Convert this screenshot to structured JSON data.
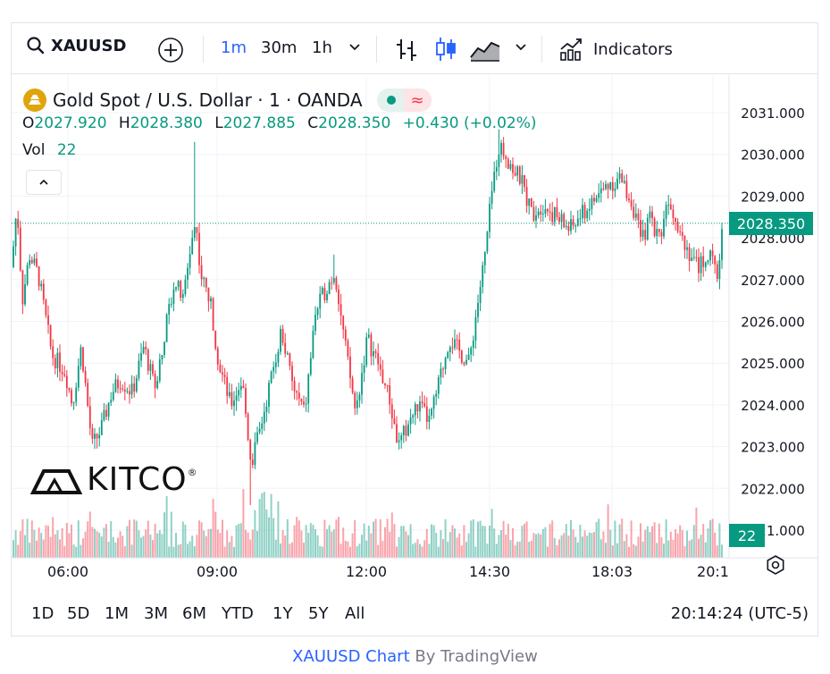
{
  "toolbar": {
    "symbol": "XAUUSD",
    "intervals": [
      "1m",
      "30m",
      "1h"
    ],
    "active_interval": "1m",
    "indicators_label": "Indicators",
    "active_color": "#2962ff"
  },
  "legend": {
    "title": "Gold Spot / U.S. Dollar · 1 · OANDA",
    "ohlc": {
      "o_label": "O",
      "o": "2027.920",
      "h_label": "H",
      "h": "2028.380",
      "l_label": "L",
      "l": "2027.885",
      "c_label": "C",
      "c": "2028.350",
      "change": "+0.430 (+0.02%)"
    },
    "vol_label": "Vol",
    "vol": "22"
  },
  "price_tag": "2028.350",
  "vol_tag": "22",
  "watermark": "KITCO",
  "ranges": [
    "1D",
    "5D",
    "1M",
    "3M",
    "6M",
    "YTD",
    "1Y",
    "5Y",
    "All"
  ],
  "clock": "20:14:24 (UTC-5)",
  "footer": {
    "link": "XAUUSD Chart",
    "by": "By TradingView"
  },
  "colors": {
    "up": "#089981",
    "down": "#f23645",
    "accent": "#2962ff"
  },
  "chart_data": {
    "type": "candlestick",
    "y_ticks": [
      "2031.000",
      "2030.000",
      "2029.000",
      "2028.000",
      "2027.000",
      "2026.000",
      "2025.000",
      "2024.000",
      "2023.000",
      "2022.000",
      "2021.000"
    ],
    "x_ticks": [
      "06:00",
      "09:00",
      "12:00",
      "14:30",
      "18:03",
      "20:1"
    ],
    "ylim": [
      2020.6,
      2031.5
    ],
    "last_price": 2028.35,
    "path": [
      [
        0,
        2027.3
      ],
      [
        6,
        2028.8
      ],
      [
        12,
        2026.5
      ],
      [
        20,
        2027.6
      ],
      [
        30,
        2027.1
      ],
      [
        45,
        2025.2
      ],
      [
        60,
        2024.8
      ],
      [
        68,
        2024.0
      ],
      [
        78,
        2025.4
      ],
      [
        90,
        2023.0
      ],
      [
        100,
        2023.4
      ],
      [
        112,
        2024.3
      ],
      [
        122,
        2024.6
      ],
      [
        135,
        2024.3
      ],
      [
        148,
        2025.4
      ],
      [
        160,
        2024.4
      ],
      [
        172,
        2025.8
      ],
      [
        182,
        2027.0
      ],
      [
        192,
        2026.5
      ],
      [
        200,
        2027.8
      ],
      [
        206,
        2028.4
      ],
      [
        212,
        2027.1
      ],
      [
        222,
        2026.5
      ],
      [
        232,
        2025.0
      ],
      [
        245,
        2024.0
      ],
      [
        258,
        2024.6
      ],
      [
        268,
        2022.6
      ],
      [
        278,
        2023.4
      ],
      [
        290,
        2024.6
      ],
      [
        302,
        2025.8
      ],
      [
        315,
        2024.4
      ],
      [
        328,
        2023.8
      ],
      [
        340,
        2026.2
      ],
      [
        352,
        2026.8
      ],
      [
        362,
        2027.2
      ],
      [
        372,
        2025.6
      ],
      [
        385,
        2023.8
      ],
      [
        398,
        2025.6
      ],
      [
        410,
        2025.0
      ],
      [
        422,
        2024.2
      ],
      [
        433,
        2023.0
      ],
      [
        445,
        2023.6
      ],
      [
        455,
        2024.0
      ],
      [
        468,
        2023.6
      ],
      [
        478,
        2024.5
      ],
      [
        490,
        2025.6
      ],
      [
        500,
        2025.3
      ],
      [
        512,
        2025.0
      ],
      [
        520,
        2026.2
      ],
      [
        530,
        2027.6
      ],
      [
        537,
        2029.0
      ],
      [
        545,
        2030.2
      ],
      [
        553,
        2030.0
      ],
      [
        562,
        2029.6
      ],
      [
        570,
        2029.4
      ],
      [
        582,
        2028.6
      ],
      [
        595,
        2028.8
      ],
      [
        610,
        2028.5
      ],
      [
        625,
        2028.2
      ],
      [
        640,
        2028.6
      ],
      [
        652,
        2028.9
      ],
      [
        668,
        2029.3
      ],
      [
        682,
        2029.4
      ],
      [
        695,
        2028.8
      ],
      [
        705,
        2027.9
      ],
      [
        715,
        2028.5
      ],
      [
        725,
        2028.0
      ],
      [
        735,
        2029.0
      ],
      [
        745,
        2028.4
      ],
      [
        755,
        2027.8
      ],
      [
        768,
        2027.3
      ],
      [
        780,
        2027.6
      ],
      [
        790,
        2027.1
      ],
      [
        796,
        2028.35
      ]
    ]
  }
}
